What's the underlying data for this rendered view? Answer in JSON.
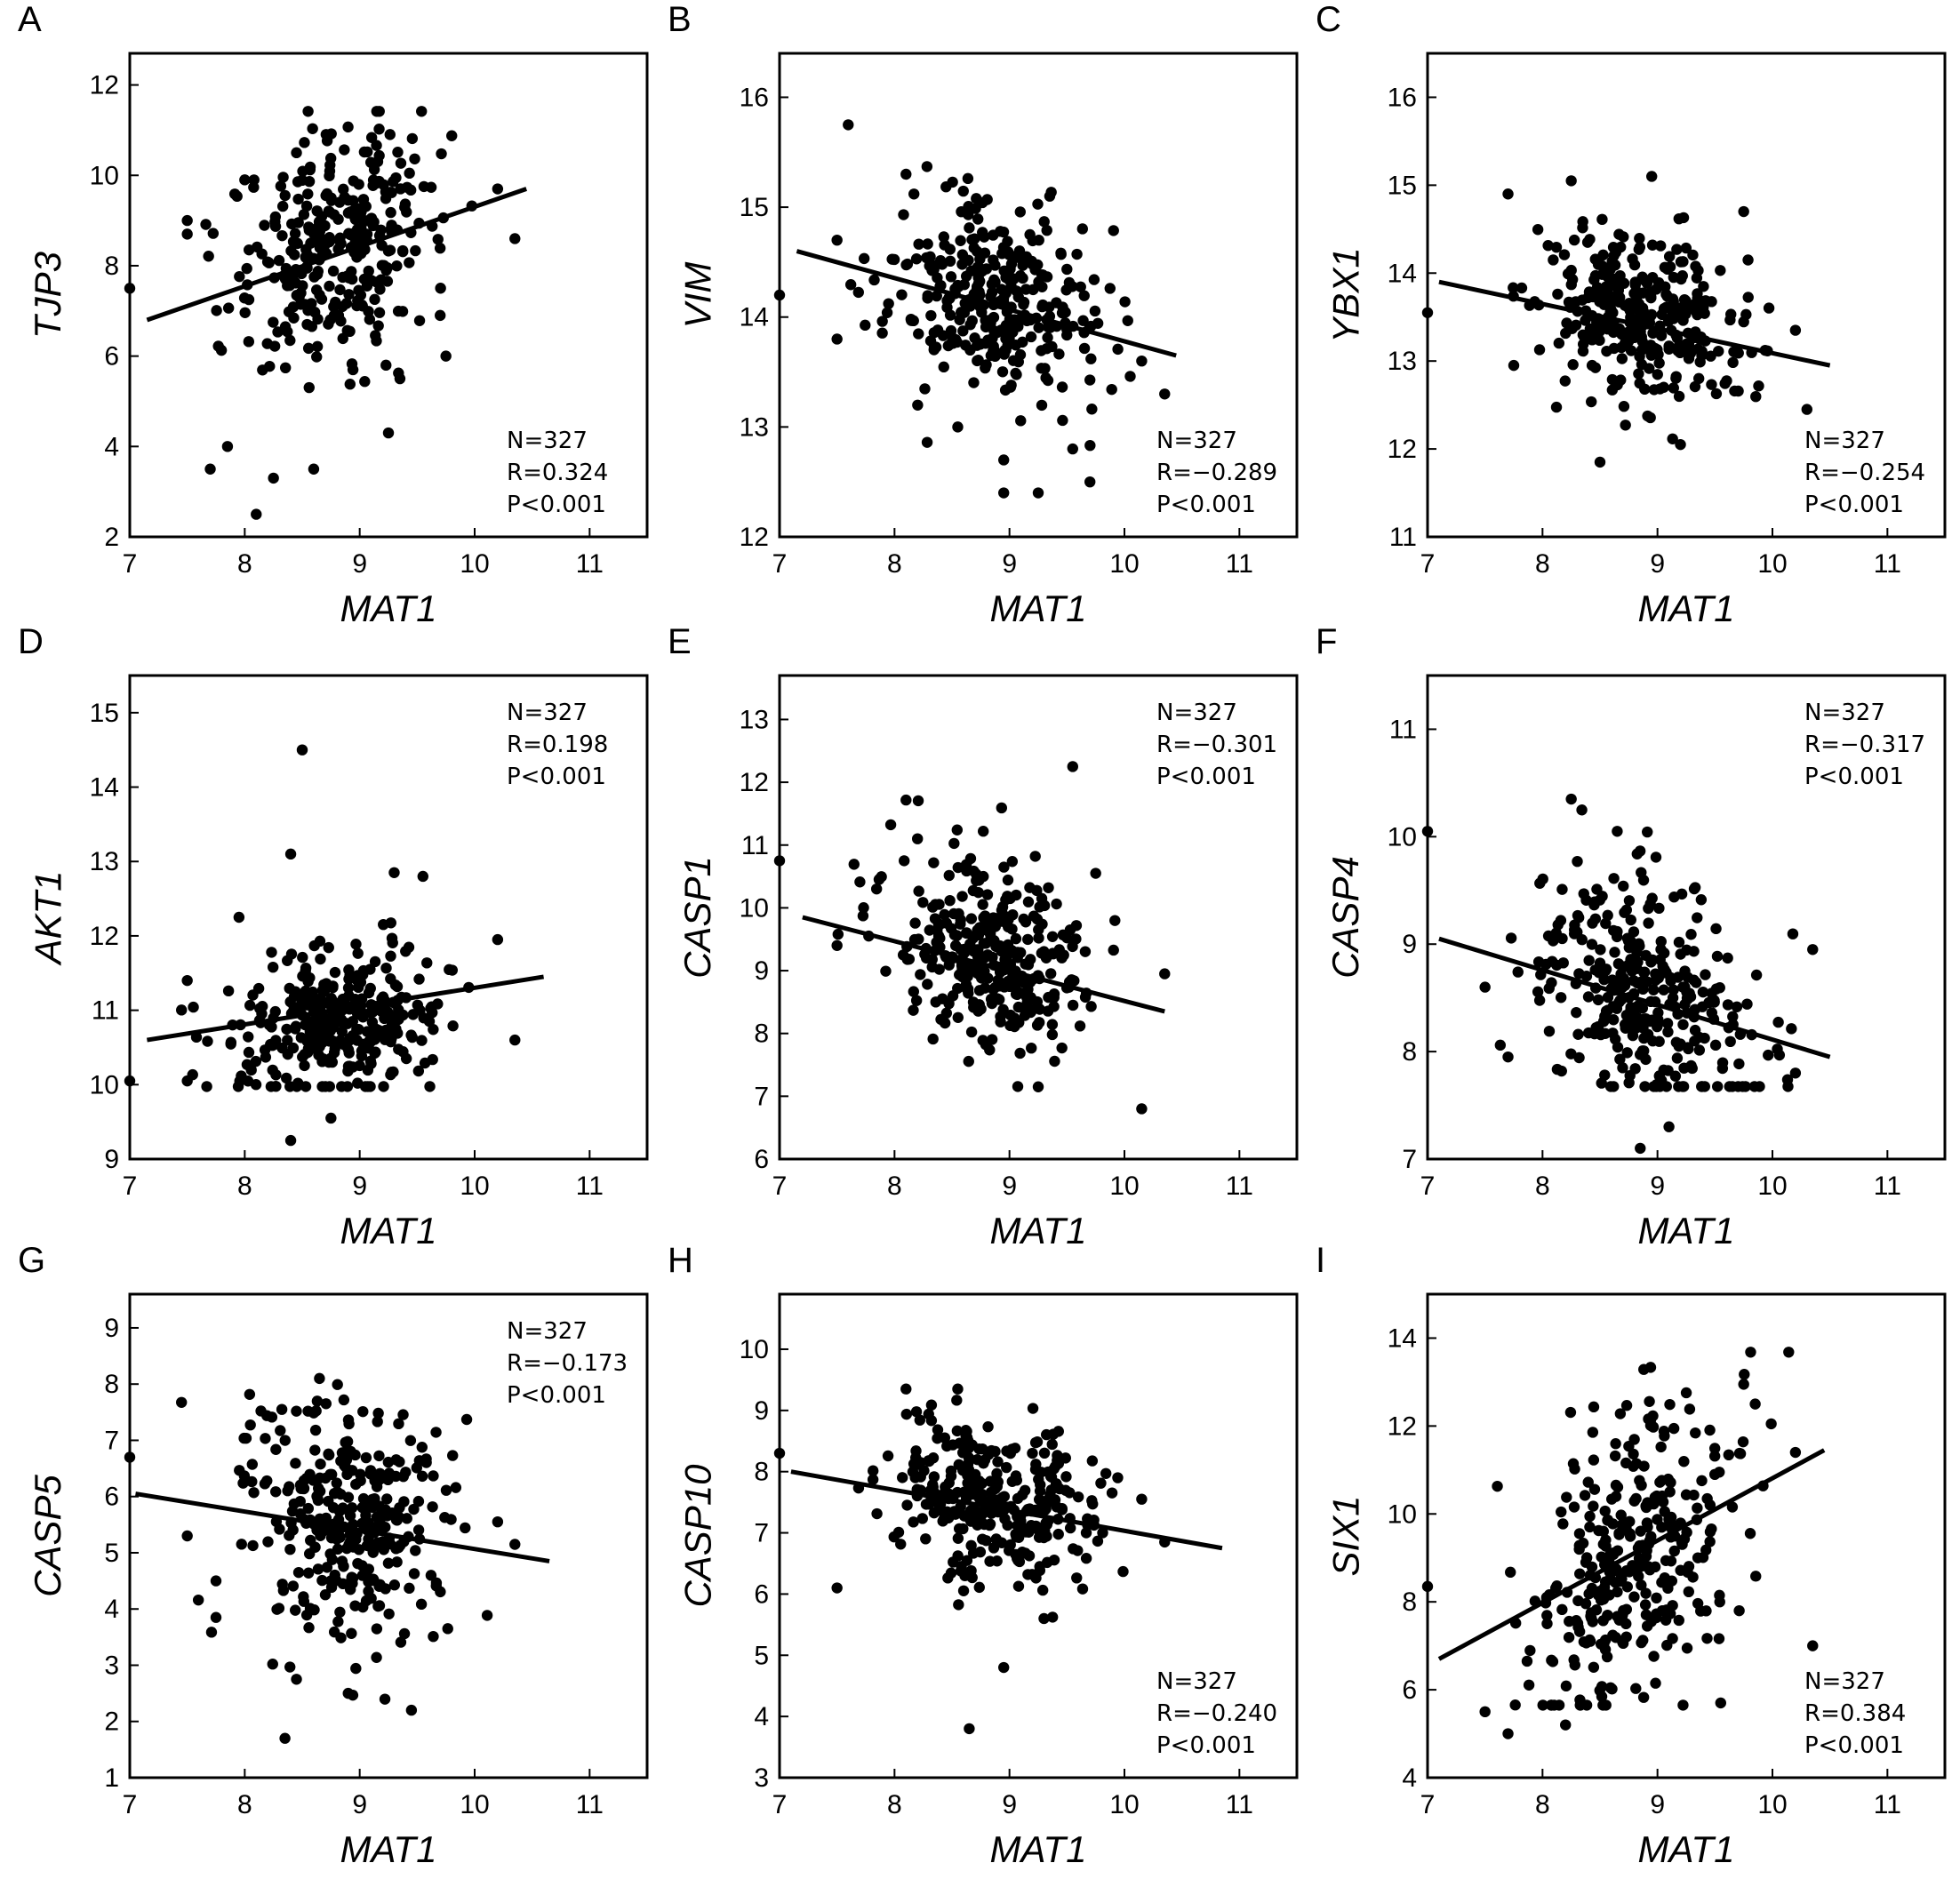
{
  "chart_data": [
    {
      "panel": "A",
      "type": "scatter",
      "xlabel": "MAT1",
      "ylabel": "TJP3",
      "xlim": [
        7,
        11.5
      ],
      "ylim": [
        2,
        12.7
      ],
      "xticks": [
        7,
        8,
        9,
        10,
        11
      ],
      "yticks": [
        2,
        4,
        6,
        8,
        10,
        12
      ],
      "stats": [
        "N=327",
        "R=0.324",
        "P<0.001"
      ],
      "stats_pos": "bottom-right",
      "n": 327,
      "r": 0.324,
      "x_mean": 8.8,
      "x_sd": 0.45,
      "y_mean": 8.5,
      "y_sd": 1.35,
      "fit": {
        "x": [
          7.15,
          10.45
        ],
        "y": [
          6.8,
          9.7
        ]
      },
      "points": [
        [
          7.0,
          7.5
        ],
        [
          7.5,
          9.0
        ],
        [
          7.5,
          8.7
        ],
        [
          7.7,
          3.5
        ],
        [
          7.85,
          4.0
        ],
        [
          8.1,
          2.5
        ],
        [
          8.25,
          3.3
        ],
        [
          8.0,
          9.9
        ],
        [
          8.45,
          10.5
        ],
        [
          9.7,
          6.9
        ],
        [
          9.75,
          6.0
        ],
        [
          10.2,
          9.7
        ],
        [
          10.35,
          8.6
        ],
        [
          9.25,
          4.3
        ],
        [
          9.35,
          5.5
        ],
        [
          8.6,
          3.5
        ]
      ]
    },
    {
      "panel": "B",
      "type": "scatter",
      "xlabel": "MAT1",
      "ylabel": "VIM",
      "xlim": [
        7,
        11.5
      ],
      "ylim": [
        12,
        16.4
      ],
      "xticks": [
        7,
        8,
        9,
        10,
        11
      ],
      "yticks": [
        12,
        13,
        14,
        15,
        16
      ],
      "stats": [
        "N=327",
        "R=−0.289",
        "P<0.001"
      ],
      "stats_pos": "bottom-right",
      "n": 327,
      "r": -0.289,
      "x_mean": 8.85,
      "x_sd": 0.45,
      "y_mean": 14.15,
      "y_sd": 0.48,
      "fit": {
        "x": [
          7.15,
          10.45
        ],
        "y": [
          14.6,
          13.65
        ]
      },
      "points": [
        [
          7.0,
          14.2
        ],
        [
          7.5,
          14.7
        ],
        [
          7.5,
          13.8
        ],
        [
          8.1,
          15.3
        ],
        [
          8.95,
          12.4
        ],
        [
          9.25,
          12.4
        ],
        [
          8.95,
          12.7
        ],
        [
          9.7,
          12.5
        ],
        [
          10.35,
          13.3
        ],
        [
          10.15,
          13.6
        ],
        [
          9.35,
          15.1
        ],
        [
          8.55,
          13.0
        ],
        [
          9.55,
          12.8
        ]
      ]
    },
    {
      "panel": "C",
      "type": "scatter",
      "xlabel": "MAT1",
      "ylabel": "YBX1",
      "xlim": [
        7,
        11.5
      ],
      "ylim": [
        11,
        16.5
      ],
      "xticks": [
        7,
        8,
        9,
        10,
        11
      ],
      "yticks": [
        11,
        12,
        13,
        14,
        15,
        16
      ],
      "stats": [
        "N=327",
        "R=−0.254",
        "P<0.001"
      ],
      "stats_pos": "bottom-right",
      "n": 327,
      "r": -0.254,
      "x_mean": 8.85,
      "x_sd": 0.45,
      "y_mean": 13.5,
      "y_sd": 0.5,
      "fit": {
        "x": [
          7.1,
          10.5
        ],
        "y": [
          13.9,
          12.95
        ]
      },
      "points": [
        [
          7.0,
          13.55
        ],
        [
          7.7,
          14.9
        ],
        [
          8.25,
          15.05
        ],
        [
          8.95,
          15.1
        ],
        [
          9.75,
          14.7
        ],
        [
          10.3,
          12.45
        ],
        [
          8.5,
          11.85
        ],
        [
          9.2,
          12.05
        ],
        [
          10.2,
          13.35
        ],
        [
          7.75,
          12.95
        ]
      ]
    },
    {
      "panel": "D",
      "type": "scatter",
      "xlabel": "MAT1",
      "ylabel": "AKT1",
      "xlim": [
        7,
        11.5
      ],
      "ylim": [
        9,
        15.5
      ],
      "xticks": [
        7,
        8,
        9,
        10,
        11
      ],
      "yticks": [
        9,
        10,
        11,
        12,
        13,
        14,
        15
      ],
      "stats": [
        "N=327",
        "R=0.198",
        "P<0.001"
      ],
      "stats_pos": "top-right",
      "n": 327,
      "r": 0.198,
      "x_mean": 8.85,
      "x_sd": 0.45,
      "y_mean": 10.9,
      "y_sd": 0.5,
      "fit": {
        "x": [
          7.15,
          10.6
        ],
        "y": [
          10.6,
          11.45
        ]
      },
      "points": [
        [
          7.0,
          10.05
        ],
        [
          8.5,
          14.5
        ],
        [
          8.4,
          13.1
        ],
        [
          9.3,
          12.85
        ],
        [
          9.55,
          12.8
        ],
        [
          10.2,
          11.95
        ],
        [
          10.35,
          10.6
        ],
        [
          8.4,
          9.25
        ],
        [
          8.75,
          9.55
        ],
        [
          7.5,
          10.05
        ],
        [
          7.5,
          11.4
        ],
        [
          7.95,
          12.25
        ]
      ]
    },
    {
      "panel": "E",
      "type": "scatter",
      "xlabel": "MAT1",
      "ylabel": "CASP1",
      "xlim": [
        7,
        11.5
      ],
      "ylim": [
        6,
        13.7
      ],
      "xticks": [
        7,
        8,
        9,
        10,
        11
      ],
      "yticks": [
        6,
        7,
        8,
        9,
        10,
        11,
        12,
        13
      ],
      "stats": [
        "N=327",
        "R=−0.301",
        "P<0.001"
      ],
      "stats_pos": "top-right",
      "n": 327,
      "r": -0.301,
      "x_mean": 8.85,
      "x_sd": 0.45,
      "y_mean": 9.2,
      "y_sd": 0.75,
      "fit": {
        "x": [
          7.2,
          10.35
        ],
        "y": [
          9.85,
          8.35
        ]
      },
      "points": [
        [
          7.0,
          10.75
        ],
        [
          9.55,
          12.25
        ],
        [
          10.15,
          6.8
        ],
        [
          10.35,
          8.95
        ],
        [
          8.2,
          11.1
        ],
        [
          9.25,
          7.15
        ],
        [
          9.75,
          10.55
        ],
        [
          7.5,
          9.4
        ]
      ]
    },
    {
      "panel": "F",
      "type": "scatter",
      "xlabel": "MAT1",
      "ylabel": "CASP4",
      "xlim": [
        7,
        11.5
      ],
      "ylim": [
        7,
        11.5
      ],
      "xticks": [
        7,
        8,
        9,
        10,
        11
      ],
      "yticks": [
        7,
        8,
        9,
        10,
        11
      ],
      "stats": [
        "N=327",
        "R=−0.317",
        "P<0.001"
      ],
      "stats_pos": "top-right",
      "n": 327,
      "r": -0.317,
      "x_mean": 8.85,
      "x_sd": 0.45,
      "y_mean": 8.55,
      "y_sd": 0.55,
      "fit": {
        "x": [
          7.1,
          10.5
        ],
        "y": [
          9.05,
          7.95
        ]
      },
      "points": [
        [
          7.0,
          10.05
        ],
        [
          8.25,
          10.35
        ],
        [
          8.65,
          10.05
        ],
        [
          10.35,
          8.95
        ],
        [
          8.85,
          7.1
        ],
        [
          9.1,
          7.3
        ],
        [
          10.2,
          7.8
        ],
        [
          7.5,
          8.6
        ],
        [
          7.7,
          7.95
        ]
      ]
    },
    {
      "panel": "G",
      "type": "scatter",
      "xlabel": "MAT1",
      "ylabel": "CASP5",
      "xlim": [
        7,
        11.5
      ],
      "ylim": [
        1,
        9.6
      ],
      "xticks": [
        7,
        8,
        9,
        10,
        11
      ],
      "yticks": [
        1,
        2,
        3,
        4,
        5,
        6,
        7,
        8,
        9
      ],
      "stats": [
        "N=327",
        "R=−0.173",
        "P<0.001"
      ],
      "stats_pos": "top-right",
      "n": 327,
      "r": -0.173,
      "x_mean": 8.85,
      "x_sd": 0.45,
      "y_mean": 5.6,
      "y_sd": 1.1,
      "fit": {
        "x": [
          7.05,
          10.65
        ],
        "y": [
          6.05,
          4.85
        ]
      },
      "points": [
        [
          7.0,
          6.7
        ],
        [
          8.65,
          8.1
        ],
        [
          8.35,
          1.7
        ],
        [
          9.45,
          2.2
        ],
        [
          8.45,
          2.75
        ],
        [
          8.9,
          2.5
        ],
        [
          10.35,
          5.15
        ],
        [
          10.2,
          5.55
        ],
        [
          7.5,
          5.3
        ],
        [
          7.75,
          3.85
        ],
        [
          7.75,
          4.5
        ]
      ]
    },
    {
      "panel": "H",
      "type": "scatter",
      "xlabel": "MAT1",
      "ylabel": "CASP10",
      "xlim": [
        7,
        11.5
      ],
      "ylim": [
        3,
        10.9
      ],
      "xticks": [
        7,
        8,
        9,
        10,
        11
      ],
      "yticks": [
        3,
        4,
        5,
        6,
        7,
        8,
        9,
        10
      ],
      "stats": [
        "N=327",
        "R=−0.240",
        "P<0.001"
      ],
      "stats_pos": "bottom-right",
      "n": 327,
      "r": -0.24,
      "x_mean": 8.85,
      "x_sd": 0.45,
      "y_mean": 7.5,
      "y_sd": 0.65,
      "fit": {
        "x": [
          7.1,
          10.85
        ],
        "y": [
          8.0,
          6.75
        ]
      },
      "points": [
        [
          7.0,
          8.3
        ],
        [
          8.65,
          3.8
        ],
        [
          8.95,
          4.8
        ],
        [
          8.1,
          9.35
        ],
        [
          8.55,
          9.35
        ],
        [
          10.35,
          6.85
        ],
        [
          10.15,
          7.55
        ],
        [
          7.5,
          6.1
        ],
        [
          9.3,
          5.6
        ]
      ]
    },
    {
      "panel": "I",
      "type": "scatter",
      "xlabel": "MAT1",
      "ylabel": "SIX1",
      "xlim": [
        7,
        11.5
      ],
      "ylim": [
        4,
        15
      ],
      "xticks": [
        7,
        8,
        9,
        10,
        11
      ],
      "yticks": [
        4,
        6,
        8,
        10,
        12,
        14
      ],
      "stats": [
        "N=327",
        "R=0.384",
        "P<0.001"
      ],
      "stats_pos": "bottom-right",
      "n": 327,
      "r": 0.384,
      "x_mean": 8.85,
      "x_sd": 0.45,
      "y_mean": 9.0,
      "y_sd": 1.8,
      "fit": {
        "x": [
          7.1,
          10.45
        ],
        "y": [
          6.7,
          11.45
        ]
      },
      "points": [
        [
          7.0,
          8.35
        ],
        [
          9.75,
          12.95
        ],
        [
          9.85,
          12.5
        ],
        [
          10.35,
          7.0
        ],
        [
          7.7,
          5.0
        ],
        [
          7.5,
          5.5
        ],
        [
          8.2,
          5.2
        ],
        [
          9.55,
          5.7
        ],
        [
          10.2,
          11.4
        ]
      ]
    }
  ]
}
